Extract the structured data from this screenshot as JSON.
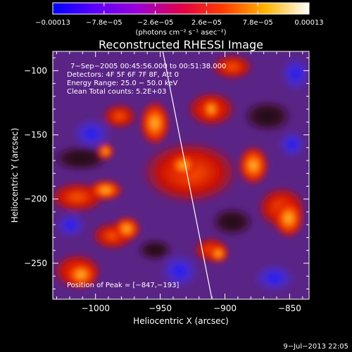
{
  "chart_data": {
    "type": "heatmap",
    "title": "Reconstructed RHESSI Image",
    "xlabel": "Heliocentric X (arcsec)",
    "ylabel": "Heliocentric Y (arcsec)",
    "xlim": [
      -1033,
      -835
    ],
    "ylim": [
      -278,
      -85
    ],
    "x_ticks": [
      {
        "value": -1000,
        "label": "−1000"
      },
      {
        "value": -950,
        "label": "−950"
      },
      {
        "value": -900,
        "label": "−900"
      },
      {
        "value": -850,
        "label": "−850"
      }
    ],
    "y_ticks": [
      {
        "value": -100,
        "label": "−100"
      },
      {
        "value": -150,
        "label": "−150"
      },
      {
        "value": -200,
        "label": "−200"
      },
      {
        "value": -250,
        "label": "−250"
      }
    ],
    "colorbar": {
      "min": -0.00013,
      "max": 0.00013,
      "ticks": [
        {
          "value": -0.00013,
          "label": "−0.00013"
        },
        {
          "value": -7.8e-05,
          "label": "−7.8e−05"
        },
        {
          "value": -2.6e-05,
          "label": "−2.6e−05"
        },
        {
          "value": 2.6e-05,
          "label": "2.6e−05"
        },
        {
          "value": 7.8e-05,
          "label": "7.8e−05"
        },
        {
          "value": 0.00013,
          "label": "0.00013"
        }
      ],
      "units": "(photons cm⁻² s⁻¹ asec⁻²)",
      "colors": [
        "#0000ff",
        "#7f00ff",
        "#bf00bf",
        "#ff0000",
        "#ff8000",
        "#ffff80",
        "#ffffff"
      ]
    },
    "annotations": [
      "7−Sep−2005 00:45:56.000 to 00:51:38.000",
      "Detectors: 4F 5F 6F 7F 8F, Att 0",
      "Energy Range: 25.0 − 50.0 keV",
      "Clean     Total counts: 5.2E+03",
      "Position of Peak = [−847,−193]"
    ],
    "limb_line": {
      "x": [
        -948,
        -910
      ],
      "y": [
        -85,
        -278
      ]
    },
    "peak_position": {
      "x": -847,
      "y": -193
    },
    "timestamp": "9−Jul−2013 22:05"
  }
}
